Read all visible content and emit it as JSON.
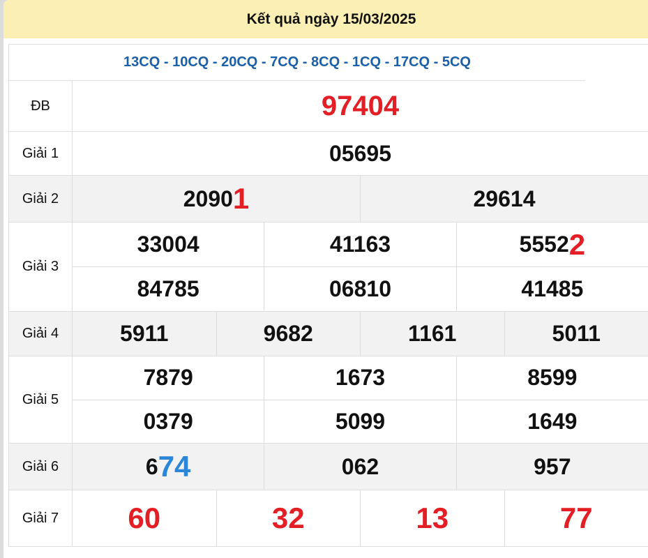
{
  "header": {
    "title": "Kết quả ngày 15/03/2025"
  },
  "codes": "13CQ - 10CQ - 20CQ - 7CQ - 8CQ - 1CQ - 17CQ - 5CQ",
  "colors": {
    "header_bg": "#fcefb3",
    "code_text": "#1a5fa8",
    "highlight_red": "#e31e24",
    "highlight_blue": "#2b86d9"
  },
  "prizes": [
    {
      "label": "ĐB",
      "lines": [
        [
          {
            "main": "",
            "hl": "97404"
          }
        ]
      ]
    },
    {
      "label": "Giải 1",
      "lines": [
        [
          {
            "main": "05695",
            "hl": ""
          }
        ]
      ]
    },
    {
      "label": "Giải 2",
      "lines": [
        [
          {
            "main": "2090",
            "hl": "1"
          },
          {
            "main": "29614",
            "hl": ""
          }
        ]
      ]
    },
    {
      "label": "Giải 3",
      "lines": [
        [
          {
            "main": "33004",
            "hl": ""
          },
          {
            "main": "41163",
            "hl": ""
          },
          {
            "main": "5552",
            "hl": "2"
          }
        ],
        [
          {
            "main": "84785",
            "hl": ""
          },
          {
            "main": "06810",
            "hl": ""
          },
          {
            "main": "41485",
            "hl": ""
          }
        ]
      ]
    },
    {
      "label": "Giải 4",
      "lines": [
        [
          {
            "main": "5911",
            "hl": ""
          },
          {
            "main": "9682",
            "hl": ""
          },
          {
            "main": "1161",
            "hl": ""
          },
          {
            "main": "5011",
            "hl": ""
          }
        ]
      ]
    },
    {
      "label": "Giải 5",
      "lines": [
        [
          {
            "main": "7879",
            "hl": ""
          },
          {
            "main": "1673",
            "hl": ""
          },
          {
            "main": "8599",
            "hl": ""
          }
        ],
        [
          {
            "main": "0379",
            "hl": ""
          },
          {
            "main": "5099",
            "hl": ""
          },
          {
            "main": "1649",
            "hl": ""
          }
        ]
      ]
    },
    {
      "label": "Giải 6",
      "lines": [
        [
          {
            "main": "6",
            "hl": "74",
            "hl_color": "blue"
          },
          {
            "main": "062",
            "hl": ""
          },
          {
            "main": "957",
            "hl": ""
          }
        ]
      ]
    },
    {
      "label": "Giải 7",
      "lines": [
        [
          {
            "main": "",
            "hl": "60"
          },
          {
            "main": "",
            "hl": "32"
          },
          {
            "main": "",
            "hl": "13"
          },
          {
            "main": "",
            "hl": "77"
          }
        ]
      ]
    }
  ]
}
